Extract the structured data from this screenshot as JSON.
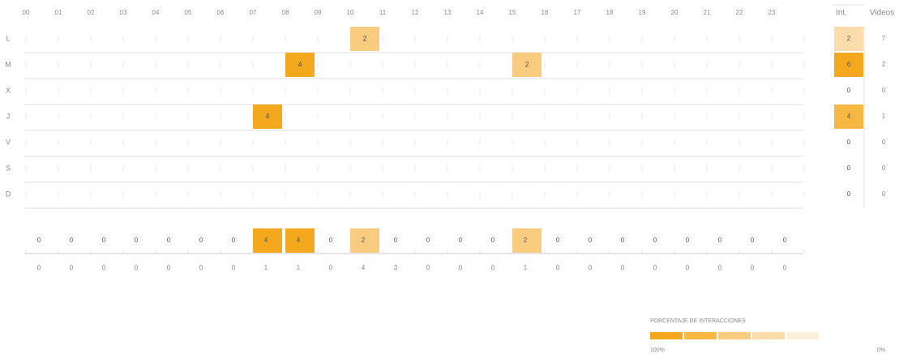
{
  "chart_data": {
    "type": "heatmap",
    "hours": [
      "00",
      "01",
      "02",
      "03",
      "04",
      "05",
      "06",
      "07",
      "08",
      "09",
      "10",
      "11",
      "12",
      "13",
      "14",
      "15",
      "16",
      "17",
      "18",
      "19",
      "20",
      "21",
      "22",
      "23"
    ],
    "days": [
      "L",
      "M",
      "X",
      "J",
      "V",
      "S",
      "D"
    ],
    "values": [
      [
        null,
        null,
        null,
        null,
        null,
        null,
        null,
        null,
        null,
        null,
        2,
        null,
        null,
        null,
        null,
        null,
        null,
        null,
        null,
        null,
        null,
        null,
        null,
        null
      ],
      [
        null,
        null,
        null,
        null,
        null,
        null,
        null,
        null,
        4,
        null,
        null,
        null,
        null,
        null,
        null,
        2,
        null,
        null,
        null,
        null,
        null,
        null,
        null,
        null
      ],
      [
        null,
        null,
        null,
        null,
        null,
        null,
        null,
        null,
        null,
        null,
        null,
        null,
        null,
        null,
        null,
        null,
        null,
        null,
        null,
        null,
        null,
        null,
        null,
        null
      ],
      [
        null,
        null,
        null,
        null,
        null,
        null,
        null,
        4,
        null,
        null,
        null,
        null,
        null,
        null,
        null,
        null,
        null,
        null,
        null,
        null,
        null,
        null,
        null,
        null
      ],
      [
        null,
        null,
        null,
        null,
        null,
        null,
        null,
        null,
        null,
        null,
        null,
        null,
        null,
        null,
        null,
        null,
        null,
        null,
        null,
        null,
        null,
        null,
        null,
        null
      ],
      [
        null,
        null,
        null,
        null,
        null,
        null,
        null,
        null,
        null,
        null,
        null,
        null,
        null,
        null,
        null,
        null,
        null,
        null,
        null,
        null,
        null,
        null,
        null,
        null
      ],
      [
        null,
        null,
        null,
        null,
        null,
        null,
        null,
        null,
        null,
        null,
        null,
        null,
        null,
        null,
        null,
        null,
        null,
        null,
        null,
        null,
        null,
        null,
        null,
        null
      ]
    ],
    "int_label": "Int.",
    "videos_label": "Videos",
    "int_values": [
      2,
      6,
      0,
      4,
      0,
      0,
      0
    ],
    "video_values": [
      7,
      2,
      0,
      1,
      0,
      0,
      0
    ],
    "hour_interactions": [
      0,
      0,
      0,
      0,
      0,
      0,
      0,
      4,
      4,
      0,
      2,
      0,
      0,
      0,
      0,
      2,
      0,
      0,
      0,
      0,
      0,
      0,
      0,
      0
    ],
    "hour_videos": [
      0,
      0,
      0,
      0,
      0,
      0,
      0,
      1,
      1,
      0,
      4,
      3,
      0,
      0,
      0,
      1,
      0,
      0,
      0,
      0,
      0,
      0,
      0,
      0
    ],
    "legend_title": "PORCENTAJE DE INTERACCIONES",
    "legend_colors": [
      "#f4a81d",
      "#f6b843",
      "#f9cc80",
      "#fbdcaa",
      "#fdf0da"
    ],
    "legend_max_label": "100%",
    "legend_min_label": "0%"
  }
}
